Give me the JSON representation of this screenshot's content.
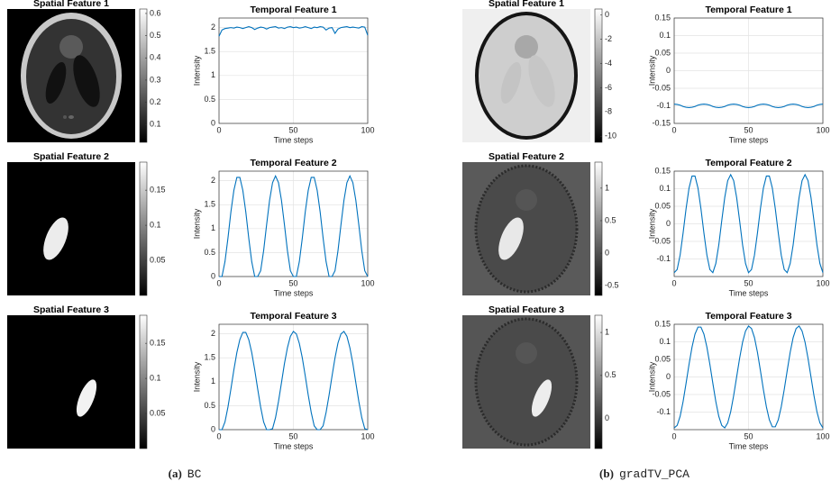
{
  "chart_data": [
    {
      "type": "image",
      "title": "Spatial Feature 1",
      "clim": [
        0.02,
        0.62
      ],
      "cticks": [
        0.1,
        0.2,
        0.3,
        0.4,
        0.5,
        0.6
      ]
    },
    {
      "type": "line",
      "title": "Temporal Feature 1",
      "xlabel": "Time steps",
      "ylabel": "Intensity",
      "xlim": [
        0,
        100
      ],
      "xticks": [
        0,
        50,
        100
      ],
      "ylim": [
        0,
        2.2
      ],
      "yticks": [
        0,
        0.5,
        1,
        1.5,
        2
      ],
      "grid": true,
      "color": "#0072bd",
      "x": [
        0,
        2,
        4,
        6,
        8,
        10,
        12,
        14,
        16,
        18,
        20,
        22,
        24,
        26,
        28,
        30,
        32,
        34,
        36,
        38,
        40,
        42,
        44,
        46,
        48,
        50,
        52,
        54,
        56,
        58,
        60,
        62,
        64,
        66,
        68,
        70,
        72,
        74,
        76,
        78,
        80,
        82,
        84,
        86,
        88,
        90,
        92,
        94,
        96,
        98,
        100
      ],
      "values": [
        1.82,
        1.95,
        1.98,
        1.99,
        2.0,
        1.99,
        2.01,
        2.0,
        1.98,
        2.0,
        2.02,
        2.0,
        1.96,
        1.99,
        2.01,
        2.0,
        1.97,
        2.0,
        2.01,
        2.02,
        1.99,
        2.0,
        1.98,
        2.01,
        2.02,
        2.0,
        2.01,
        1.99,
        2.0,
        2.02,
        2.0,
        1.98,
        2.01,
        2.0,
        2.02,
        2.01,
        1.95,
        1.99,
        2.0,
        1.88,
        1.97,
        2.0,
        2.01,
        2.02,
        2.0,
        2.01,
        2.0,
        1.99,
        2.02,
        2.01,
        1.84
      ]
    },
    {
      "type": "image",
      "title": "Spatial Feature 2",
      "clim": [
        0,
        0.19
      ],
      "cticks": [
        0.05,
        0.1,
        0.15
      ]
    },
    {
      "type": "line",
      "title": "Temporal Feature 2",
      "xlabel": "Time steps",
      "ylabel": "Intensity",
      "xlim": [
        0,
        100
      ],
      "xticks": [
        0,
        50,
        100
      ],
      "ylim": [
        0,
        2.2
      ],
      "yticks": [
        0,
        0.5,
        1,
        1.5,
        2
      ],
      "grid": true,
      "color": "#0072bd",
      "x": [
        0,
        2,
        4,
        6,
        8,
        10,
        12,
        14,
        16,
        18,
        20,
        22,
        24,
        26,
        28,
        30,
        32,
        34,
        36,
        38,
        40,
        42,
        44,
        46,
        48,
        50,
        52,
        54,
        56,
        58,
        60,
        62,
        64,
        66,
        68,
        70,
        72,
        74,
        76,
        78,
        80,
        82,
        84,
        86,
        88,
        90,
        92,
        94,
        96,
        98,
        100
      ],
      "values": [
        0,
        0,
        0.31,
        0.8,
        1.35,
        1.8,
        2.07,
        2.07,
        1.8,
        1.35,
        0.8,
        0.31,
        0,
        0,
        0.12,
        0.54,
        1.08,
        1.59,
        1.96,
        2.1,
        1.96,
        1.59,
        1.08,
        0.54,
        0.12,
        0,
        0,
        0.31,
        0.8,
        1.35,
        1.8,
        2.07,
        2.07,
        1.8,
        1.35,
        0.8,
        0.31,
        0,
        0,
        0.12,
        0.54,
        1.08,
        1.59,
        1.96,
        2.1,
        1.96,
        1.59,
        1.08,
        0.54,
        0.12,
        0
      ]
    },
    {
      "type": "image",
      "title": "Spatial Feature 3",
      "clim": [
        0,
        0.19
      ],
      "cticks": [
        0.05,
        0.1,
        0.15
      ]
    },
    {
      "type": "line",
      "title": "Temporal Feature 3",
      "xlabel": "Time steps",
      "ylabel": "Intensity",
      "xlim": [
        0,
        100
      ],
      "xticks": [
        0,
        50,
        100
      ],
      "ylim": [
        0,
        2.2
      ],
      "yticks": [
        0,
        0.5,
        1,
        1.5,
        2
      ],
      "grid": true,
      "color": "#0072bd",
      "x": [
        0,
        2,
        4,
        6,
        8,
        10,
        12,
        14,
        16,
        18,
        20,
        22,
        24,
        26,
        28,
        30,
        32,
        34,
        36,
        38,
        40,
        42,
        44,
        46,
        48,
        50,
        52,
        54,
        56,
        58,
        60,
        62,
        64,
        66,
        68,
        70,
        72,
        74,
        76,
        78,
        80,
        82,
        84,
        86,
        88,
        90,
        92,
        94,
        96,
        98,
        100
      ],
      "values": [
        0,
        0,
        0.16,
        0.47,
        0.85,
        1.25,
        1.61,
        1.88,
        2.03,
        2.03,
        1.88,
        1.61,
        1.25,
        0.85,
        0.47,
        0.16,
        0,
        0,
        0.02,
        0.25,
        0.59,
        0.98,
        1.38,
        1.71,
        1.95,
        2.05,
        2.0,
        1.8,
        1.5,
        1.12,
        0.72,
        0.36,
        0.08,
        0,
        0,
        0.08,
        0.36,
        0.72,
        1.12,
        1.5,
        1.81,
        2.0,
        2.05,
        1.95,
        1.71,
        1.38,
        0.98,
        0.59,
        0.25,
        0.02,
        0
      ]
    },
    {
      "type": "image",
      "title": "Spatial Feature 1",
      "clim": [
        -10.5,
        0.5
      ],
      "cticks": [
        0,
        -2,
        -4,
        -6,
        -8,
        -10
      ]
    },
    {
      "type": "line",
      "title": "Temporal Feature 1",
      "xlabel": "Time steps",
      "ylabel": "Intensity",
      "xlim": [
        0,
        100
      ],
      "xticks": [
        0,
        50,
        100
      ],
      "ylim": [
        -0.15,
        0.15
      ],
      "yticks": [
        -0.15,
        -0.1,
        -0.05,
        0,
        0.05,
        0.1,
        0.15
      ],
      "grid": true,
      "color": "#0072bd",
      "x": [
        0,
        2,
        4,
        6,
        8,
        10,
        12,
        14,
        16,
        18,
        20,
        22,
        24,
        26,
        28,
        30,
        32,
        34,
        36,
        38,
        40,
        42,
        44,
        46,
        48,
        50,
        52,
        54,
        56,
        58,
        60,
        62,
        64,
        66,
        68,
        70,
        72,
        74,
        76,
        78,
        80,
        82,
        84,
        86,
        88,
        90,
        92,
        94,
        96,
        98,
        100
      ],
      "values": [
        -0.095,
        -0.096,
        -0.098,
        -0.102,
        -0.104,
        -0.105,
        -0.104,
        -0.102,
        -0.098,
        -0.096,
        -0.095,
        -0.096,
        -0.098,
        -0.102,
        -0.104,
        -0.105,
        -0.104,
        -0.102,
        -0.098,
        -0.096,
        -0.095,
        -0.096,
        -0.098,
        -0.102,
        -0.104,
        -0.105,
        -0.104,
        -0.102,
        -0.098,
        -0.096,
        -0.095,
        -0.096,
        -0.098,
        -0.102,
        -0.104,
        -0.105,
        -0.104,
        -0.102,
        -0.098,
        -0.096,
        -0.095,
        -0.096,
        -0.098,
        -0.102,
        -0.104,
        -0.105,
        -0.104,
        -0.102,
        -0.098,
        -0.096,
        -0.095
      ]
    },
    {
      "type": "image",
      "title": "Spatial Feature 2",
      "clim": [
        -0.65,
        1.4
      ],
      "cticks": [
        -0.5,
        0,
        0.5,
        1
      ]
    },
    {
      "type": "line",
      "title": "Temporal Feature 2",
      "xlabel": "Time steps",
      "ylabel": "Intensity",
      "xlim": [
        0,
        100
      ],
      "xticks": [
        0,
        50,
        100
      ],
      "ylim": [
        -0.15,
        0.15
      ],
      "yticks": [
        -0.1,
        -0.05,
        0,
        0.05,
        0.1,
        0.15
      ],
      "grid": true,
      "color": "#0072bd",
      "x": [
        0,
        2,
        4,
        6,
        8,
        10,
        12,
        14,
        16,
        18,
        20,
        22,
        24,
        26,
        28,
        30,
        32,
        34,
        36,
        38,
        40,
        42,
        44,
        46,
        48,
        50,
        52,
        54,
        56,
        58,
        60,
        62,
        64,
        66,
        68,
        70,
        72,
        74,
        76,
        78,
        80,
        82,
        84,
        86,
        88,
        90,
        92,
        94,
        96,
        98,
        100
      ],
      "values": [
        -0.139,
        -0.13,
        -0.089,
        -0.026,
        0.043,
        0.102,
        0.136,
        0.136,
        0.102,
        0.043,
        -0.026,
        -0.089,
        -0.13,
        -0.139,
        -0.113,
        -0.06,
        0.009,
        0.075,
        0.123,
        0.14,
        0.123,
        0.075,
        0.009,
        -0.06,
        -0.113,
        -0.139,
        -0.13,
        -0.089,
        -0.026,
        0.043,
        0.102,
        0.136,
        0.136,
        0.102,
        0.043,
        -0.026,
        -0.089,
        -0.13,
        -0.139,
        -0.113,
        -0.06,
        0.009,
        0.075,
        0.123,
        0.14,
        0.123,
        0.075,
        0.009,
        -0.06,
        -0.113,
        -0.139
      ]
    },
    {
      "type": "image",
      "title": "Spatial Feature 3",
      "clim": [
        -0.35,
        1.2
      ],
      "cticks": [
        0,
        0.5,
        1
      ]
    },
    {
      "type": "line",
      "title": "Temporal Feature 3",
      "xlabel": "Time steps",
      "ylabel": "Intensity",
      "xlim": [
        0,
        100
      ],
      "xticks": [
        0,
        50,
        100
      ],
      "ylim": [
        -0.15,
        0.15
      ],
      "yticks": [
        -0.1,
        -0.05,
        0,
        0.05,
        0.1,
        0.15
      ],
      "grid": true,
      "color": "#0072bd",
      "x": [
        0,
        2,
        4,
        6,
        8,
        10,
        12,
        14,
        16,
        18,
        20,
        22,
        24,
        26,
        28,
        30,
        32,
        34,
        36,
        38,
        40,
        42,
        44,
        46,
        48,
        50,
        52,
        54,
        56,
        58,
        60,
        62,
        64,
        66,
        68,
        70,
        72,
        74,
        76,
        78,
        80,
        82,
        84,
        86,
        88,
        90,
        92,
        94,
        96,
        98,
        100
      ],
      "values": [
        -0.145,
        -0.138,
        -0.112,
        -0.07,
        -0.018,
        0.036,
        0.085,
        0.122,
        0.142,
        0.142,
        0.122,
        0.085,
        0.036,
        -0.018,
        -0.07,
        -0.112,
        -0.138,
        -0.145,
        -0.131,
        -0.099,
        -0.053,
        0,
        0.053,
        0.099,
        0.131,
        0.145,
        0.138,
        0.112,
        0.07,
        0.018,
        -0.036,
        -0.085,
        -0.122,
        -0.142,
        -0.142,
        -0.122,
        -0.085,
        -0.036,
        0.018,
        0.07,
        0.112,
        0.138,
        0.145,
        0.131,
        0.099,
        0.053,
        0,
        -0.053,
        -0.099,
        -0.131,
        -0.145
      ]
    }
  ],
  "captions": [
    {
      "label": "(a)",
      "text": "BC"
    },
    {
      "label": "(b)",
      "text": "gradTV_PCA"
    }
  ]
}
